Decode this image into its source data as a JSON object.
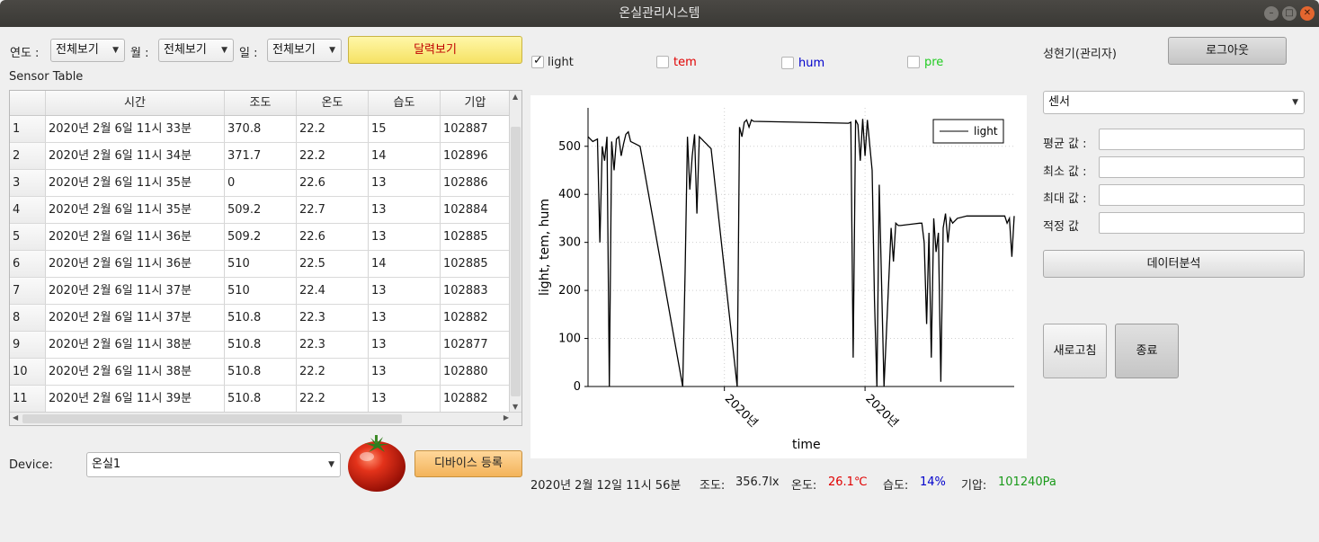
{
  "window": {
    "title": "온실관리시스템"
  },
  "filters": {
    "year_label": "연도 :",
    "year_value": "전체보기",
    "month_label": "월 :",
    "month_value": "전체보기",
    "day_label": "일 :",
    "day_value": "전체보기",
    "calendar_button": "달력보기"
  },
  "table": {
    "title": "Sensor Table",
    "columns": [
      "시간",
      "조도",
      "온도",
      "습도",
      "기압"
    ],
    "rows": [
      [
        "1",
        "2020년 2월 6일 11시 33분",
        "370.8",
        "22.2",
        "15",
        "102887"
      ],
      [
        "2",
        "2020년 2월 6일 11시 34분",
        "371.7",
        "22.2",
        "14",
        "102896"
      ],
      [
        "3",
        "2020년 2월 6일 11시 35분",
        "0",
        "22.6",
        "13",
        "102886"
      ],
      [
        "4",
        "2020년 2월 6일 11시 35분",
        "509.2",
        "22.7",
        "13",
        "102884"
      ],
      [
        "5",
        "2020년 2월 6일 11시 36분",
        "509.2",
        "22.6",
        "13",
        "102885"
      ],
      [
        "6",
        "2020년 2월 6일 11시 36분",
        "510",
        "22.5",
        "14",
        "102885"
      ],
      [
        "7",
        "2020년 2월 6일 11시 37분",
        "510",
        "22.4",
        "13",
        "102883"
      ],
      [
        "8",
        "2020년 2월 6일 11시 37분",
        "510.8",
        "22.3",
        "13",
        "102882"
      ],
      [
        "9",
        "2020년 2월 6일 11시 38분",
        "510.8",
        "22.3",
        "13",
        "102877"
      ],
      [
        "10",
        "2020년 2월 6일 11시 38분",
        "510.8",
        "22.2",
        "13",
        "102880"
      ],
      [
        "11",
        "2020년 2월 6일 11시 39분",
        "510.8",
        "22.2",
        "13",
        "102882"
      ]
    ]
  },
  "device": {
    "label": "Device:",
    "value": "온실1",
    "register_button": "디바이스 등록"
  },
  "series_toggles": [
    {
      "label": "light",
      "checked": true,
      "color": "#222222"
    },
    {
      "label": "tem",
      "checked": false,
      "color": "#e00000"
    },
    {
      "label": "hum",
      "checked": false,
      "color": "#0000cc"
    },
    {
      "label": "pre",
      "checked": false,
      "color": "#22cc22"
    }
  ],
  "chart_data": {
    "type": "line",
    "xlabel": "time",
    "ylabel": "light, tem, hum",
    "ylim": [
      0,
      580
    ],
    "yticks": [
      0,
      100,
      200,
      300,
      400,
      500
    ],
    "xticks": [
      "2020년",
      "2020년"
    ],
    "grid": true,
    "legend": "top-right",
    "series": [
      {
        "name": "light",
        "color": "#000000",
        "x": [
          0,
          2,
          4,
          5,
          6,
          7,
          8,
          9,
          10,
          11,
          12,
          13,
          14,
          15,
          16,
          17,
          18,
          20,
          22,
          40,
          41,
          42,
          43,
          44,
          45,
          46,
          47,
          48,
          49,
          50,
          51,
          52,
          63,
          64,
          65,
          66,
          67,
          68,
          69,
          70,
          110,
          111,
          112,
          113,
          114,
          115,
          116,
          117,
          118,
          120,
          121,
          122,
          123,
          125,
          128,
          129,
          130,
          131,
          132,
          140,
          141,
          142,
          143,
          144,
          145,
          146,
          147,
          148,
          149,
          150,
          151,
          152,
          153,
          154,
          156,
          160,
          175,
          176,
          177,
          178,
          179,
          180
        ],
        "y": [
          520,
          510,
          515,
          300,
          500,
          470,
          520,
          0,
          510,
          450,
          515,
          520,
          480,
          505,
          525,
          530,
          510,
          505,
          500,
          0,
          240,
          520,
          410,
          480,
          525,
          360,
          520,
          515,
          510,
          505,
          500,
          495,
          0,
          540,
          520,
          550,
          555,
          540,
          555,
          552,
          548,
          550,
          60,
          555,
          545,
          470,
          557,
          480,
          555,
          450,
          180,
          0,
          420,
          0,
          330,
          260,
          340,
          335,
          335,
          340,
          340,
          300,
          130,
          320,
          60,
          350,
          280,
          320,
          10,
          330,
          360,
          300,
          350,
          340,
          350,
          355,
          355,
          355,
          340,
          350,
          270,
          355
        ]
      }
    ]
  },
  "user": {
    "name": "성현기(관리자)",
    "logout_button": "로그아웃"
  },
  "analysis": {
    "sensor_select": "센서",
    "avg_label": "평균 값 :",
    "min_label": "최소 값 :",
    "max_label": "최대 값 :",
    "opt_label": "적정 값",
    "analyze_button": "데이터분석",
    "refresh_button": "새로고침",
    "exit_button": "종료"
  },
  "status": {
    "datetime": "2020년 2월 12일 11시 56분",
    "light_label": "조도:",
    "light_value": "356.7lx",
    "temp_label": "온도:",
    "temp_value": "26.1℃",
    "hum_label": "습도:",
    "hum_value": "14%",
    "pressure_label": "기압:",
    "pressure_value": "101240Pa"
  }
}
